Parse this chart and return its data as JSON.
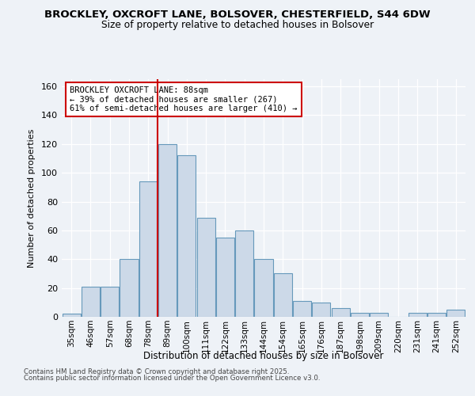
{
  "title": "BROCKLEY, OXCROFT LANE, BOLSOVER, CHESTERFIELD, S44 6DW",
  "subtitle": "Size of property relative to detached houses in Bolsover",
  "xlabel": "Distribution of detached houses by size in Bolsover",
  "ylabel": "Number of detached properties",
  "footer_line1": "Contains HM Land Registry data © Crown copyright and database right 2025.",
  "footer_line2": "Contains public sector information licensed under the Open Government Licence v3.0.",
  "bins": [
    "35sqm",
    "46sqm",
    "57sqm",
    "68sqm",
    "78sqm",
    "89sqm",
    "100sqm",
    "111sqm",
    "122sqm",
    "133sqm",
    "144sqm",
    "154sqm",
    "165sqm",
    "176sqm",
    "187sqm",
    "198sqm",
    "209sqm",
    "220sqm",
    "231sqm",
    "241sqm",
    "252sqm"
  ],
  "values": [
    2,
    21,
    21,
    40,
    94,
    120,
    112,
    69,
    55,
    60,
    40,
    30,
    11,
    10,
    6,
    3,
    3,
    0,
    3,
    3,
    5
  ],
  "bar_color": "#ccd9e8",
  "bar_edge_color": "#6699bb",
  "vline_x_index": 5,
  "annotation_line1": "BROCKLEY OXCROFT LANE: 88sqm",
  "annotation_line2": "← 39% of detached houses are smaller (267)",
  "annotation_line3": "61% of semi-detached houses are larger (410) →",
  "annotation_box_color": "#ffffff",
  "annotation_box_edge": "#cc0000",
  "vline_color": "#cc0000",
  "ylim": [
    0,
    165
  ],
  "yticks": [
    0,
    20,
    40,
    60,
    80,
    100,
    120,
    140,
    160
  ],
  "background_color": "#eef2f7",
  "plot_background": "#eef2f7",
  "grid_color": "#ffffff"
}
